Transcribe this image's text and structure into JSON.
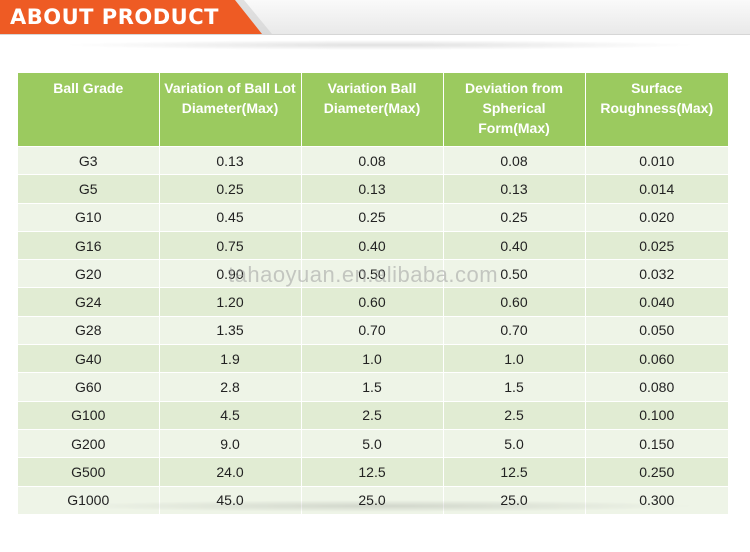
{
  "banner": {
    "title": "ABOUT PRODUCT"
  },
  "watermark": "tahaoyuan.en.alibaba.com",
  "table": {
    "headers": [
      "Ball Grade",
      "Variation of  Ball Lot Diameter(Max)",
      "Variation Ball Diameter(Max)",
      "Deviation from Spherical Form(Max)",
      "Surface Roughness(Max)"
    ],
    "rows": [
      [
        "G3",
        "0.13",
        "0.08",
        "0.08",
        "0.010"
      ],
      [
        "G5",
        "0.25",
        "0.13",
        "0.13",
        "0.014"
      ],
      [
        "G10",
        "0.45",
        "0.25",
        "0.25",
        "0.020"
      ],
      [
        "G16",
        "0.75",
        "0.40",
        "0.40",
        "0.025"
      ],
      [
        "G20",
        "0.90",
        "0.50",
        "0.50",
        "0.032"
      ],
      [
        "G24",
        "1.20",
        "0.60",
        "0.60",
        "0.040"
      ],
      [
        "G28",
        "1.35",
        "0.70",
        "0.70",
        "0.050"
      ],
      [
        "G40",
        "1.9",
        "1.0",
        "1.0",
        "0.060"
      ],
      [
        "G60",
        "2.8",
        "1.5",
        "1.5",
        "0.080"
      ],
      [
        "G100",
        "4.5",
        "2.5",
        "2.5",
        "0.100"
      ],
      [
        "G200",
        "9.0",
        "5.0",
        "5.0",
        "0.150"
      ],
      [
        "G500",
        "24.0",
        "12.5",
        "12.5",
        "0.250"
      ],
      [
        "G1000",
        "45.0",
        "25.0",
        "25.0",
        "0.300"
      ]
    ]
  },
  "colors": {
    "banner_accent": "#ee5b24",
    "header_green": "#9bca5f",
    "row_light": "#eef4e7",
    "row_dark": "#e1ecd3"
  }
}
